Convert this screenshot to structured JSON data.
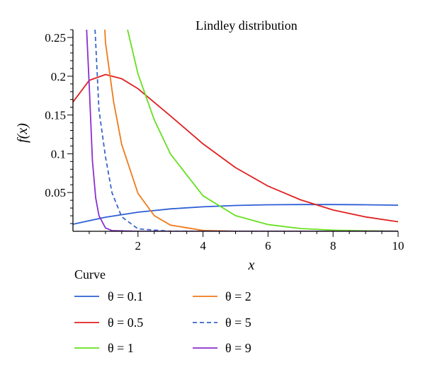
{
  "chart_data": {
    "type": "line",
    "title": "Lindley distribution",
    "xlabel": "x",
    "ylabel": "f(x)",
    "xlim": [
      0,
      10
    ],
    "ylim": [
      0,
      0.26
    ],
    "x_ticks": [
      2,
      4,
      6,
      8,
      10
    ],
    "x_tick_labels": [
      "2",
      "4",
      "6",
      "8",
      "10"
    ],
    "y_ticks": [
      0.05,
      0.1,
      0.15,
      0.2,
      0.25
    ],
    "y_tick_labels": [
      "0.05",
      "0.1",
      "0.15",
      "0.2",
      "0.25"
    ],
    "grid": false,
    "legend": {
      "title": "Curve",
      "placement": "bottom"
    },
    "series": [
      {
        "name": "θ = 0.1",
        "theta": 0.1,
        "color": "#2e5fd6",
        "dash": "solid",
        "x": [
          0,
          1,
          2,
          3,
          4,
          5,
          6,
          7,
          8,
          9,
          10
        ],
        "y": [
          0.0091,
          0.0182,
          0.0246,
          0.0289,
          0.0316,
          0.0333,
          0.0342,
          0.0345,
          0.0345,
          0.0342,
          0.0337
        ]
      },
      {
        "name": "θ = 0.5",
        "theta": 0.5,
        "color": "#e02020",
        "dash": "solid",
        "x": [
          0,
          0.5,
          1,
          1.5,
          2,
          3,
          4,
          5,
          6,
          7,
          8,
          9,
          10
        ],
        "y": [
          0.1667,
          0.1947,
          0.2022,
          0.1968,
          0.1839,
          0.1488,
          0.1128,
          0.0821,
          0.0583,
          0.0406,
          0.0275,
          0.0185,
          0.0123
        ]
      },
      {
        "name": "θ = 1",
        "theta": 1,
        "color": "#66e01f",
        "dash": "solid",
        "x": [
          1.68,
          2,
          2.5,
          3,
          4,
          5,
          6,
          7,
          8,
          9,
          10
        ],
        "y": [
          0.26,
          0.203,
          0.1437,
          0.0996,
          0.0458,
          0.0202,
          0.0087,
          0.0036,
          0.0015,
          0.0006,
          0.0002
        ]
      },
      {
        "name": "θ = 2",
        "theta": 2,
        "color": "#ef7a1a",
        "dash": "solid",
        "x": [
          0.98,
          1,
          1.25,
          1.5,
          2,
          2.5,
          3,
          4,
          5,
          6,
          7,
          8,
          9,
          10
        ],
        "y": [
          0.26,
          0.2436,
          0.1671,
          0.112,
          0.0488,
          0.0202,
          0.0079,
          0.0011,
          0.0001,
          0,
          0,
          0,
          0,
          0
        ]
      },
      {
        "name": "θ = 5",
        "theta": 5,
        "color": "#3a64c8",
        "dash": "dashed",
        "x": [
          0.68,
          0.8,
          1,
          1.2,
          1.5,
          2,
          3,
          4,
          5,
          6,
          7,
          8,
          9,
          10
        ],
        "y": [
          0.26,
          0.1567,
          0.0962,
          0.0497,
          0.0187,
          0.0031,
          0.0001,
          0,
          0,
          0,
          0,
          0,
          0,
          0
        ]
      },
      {
        "name": "θ = 9",
        "theta": 9,
        "color": "#8a2fd0",
        "dash": "solid",
        "x": [
          0.42,
          0.5,
          0.6,
          0.7,
          0.8,
          1,
          1.2,
          2,
          3,
          4,
          5,
          6,
          7,
          8,
          9,
          10
        ],
        "y": [
          0.26,
          0.1877,
          0.0908,
          0.0431,
          0.0202,
          0.0043,
          0.0009,
          0,
          0,
          0,
          0,
          0,
          0,
          0,
          0,
          0
        ]
      }
    ]
  }
}
